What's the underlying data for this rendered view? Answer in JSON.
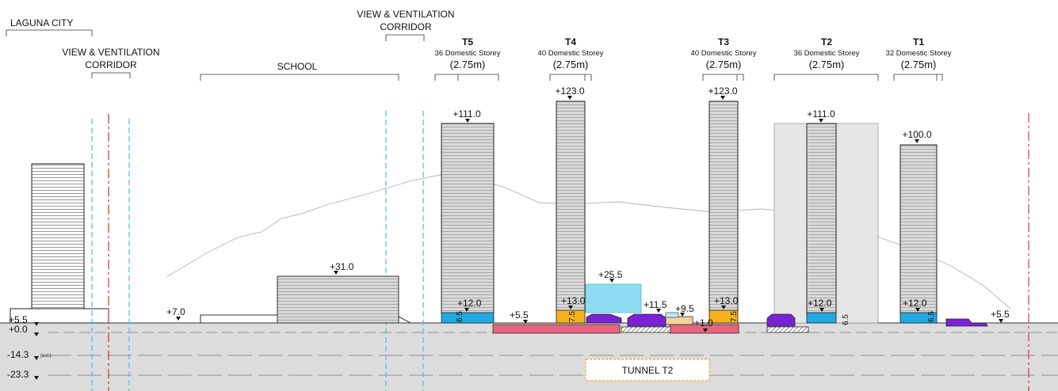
{
  "labels": {
    "laguna_city": "LAGUNA CITY",
    "view_corridor_left": [
      "VIEW & VENTILATION",
      "CORRIDOR"
    ],
    "view_corridor_mid": [
      "VIEW & VENTILATION",
      "CORRIDOR"
    ],
    "school": "SCHOOL",
    "tunnel": "TUNNEL T2"
  },
  "towers": [
    {
      "id": "T5",
      "storeys": "36 Domestic Storey",
      "height": "(2.75m)",
      "top_level": "+111.0",
      "podium_level": "+12.0",
      "podium_dim": "6.5"
    },
    {
      "id": "T4",
      "storeys": "40 Domestic Storey",
      "height": "(2.75m)",
      "top_level": "+123.0",
      "podium_level": "+13.0",
      "podium_dim": "7.5"
    },
    {
      "id": "T3",
      "storeys": "40 Domestic Storey",
      "height": "(2.75m)",
      "top_level": "+123.0",
      "podium_level": "+13.0",
      "podium_dim": "7.5"
    },
    {
      "id": "T2",
      "storeys": "36 Domestic Storey",
      "height": "(2.75m)",
      "top_level": "+111.0",
      "podium_level": "+12.0",
      "podium_dim": "6.5"
    },
    {
      "id": "T1",
      "storeys": "32 Domestic Storey",
      "height": "(2.75m)",
      "top_level": "+100.0",
      "podium_level": "+12.0",
      "podium_dim": "6.5"
    }
  ],
  "levels": {
    "school": "+31.0",
    "ground_left": "+7.0",
    "ground_t5": "+5.5",
    "block_cyan": "+25.5",
    "block_mid1": "+11.5",
    "block_mid2": "+9.5",
    "basement": "+1.0",
    "right_end": "+5.5"
  },
  "datums": [
    {
      "label": "+5.5",
      "note": ""
    },
    {
      "label": "+0.0",
      "note": ""
    },
    {
      "label": "-14.3",
      "note": "(est.)"
    },
    {
      "label": "-23.3",
      "note": ""
    }
  ],
  "colors": {
    "tower_fill": "#d9d9d9",
    "podium_blue": "#1fa9e1",
    "podium_orange": "#f5b21c",
    "purple": "#7a22d6",
    "pink": "#e8647e",
    "light_cyan": "#8fdcf2",
    "ground": "#dcdcdc",
    "corridor_red": "#d83a3a",
    "corridor_cyan": "#3cc4e0"
  }
}
